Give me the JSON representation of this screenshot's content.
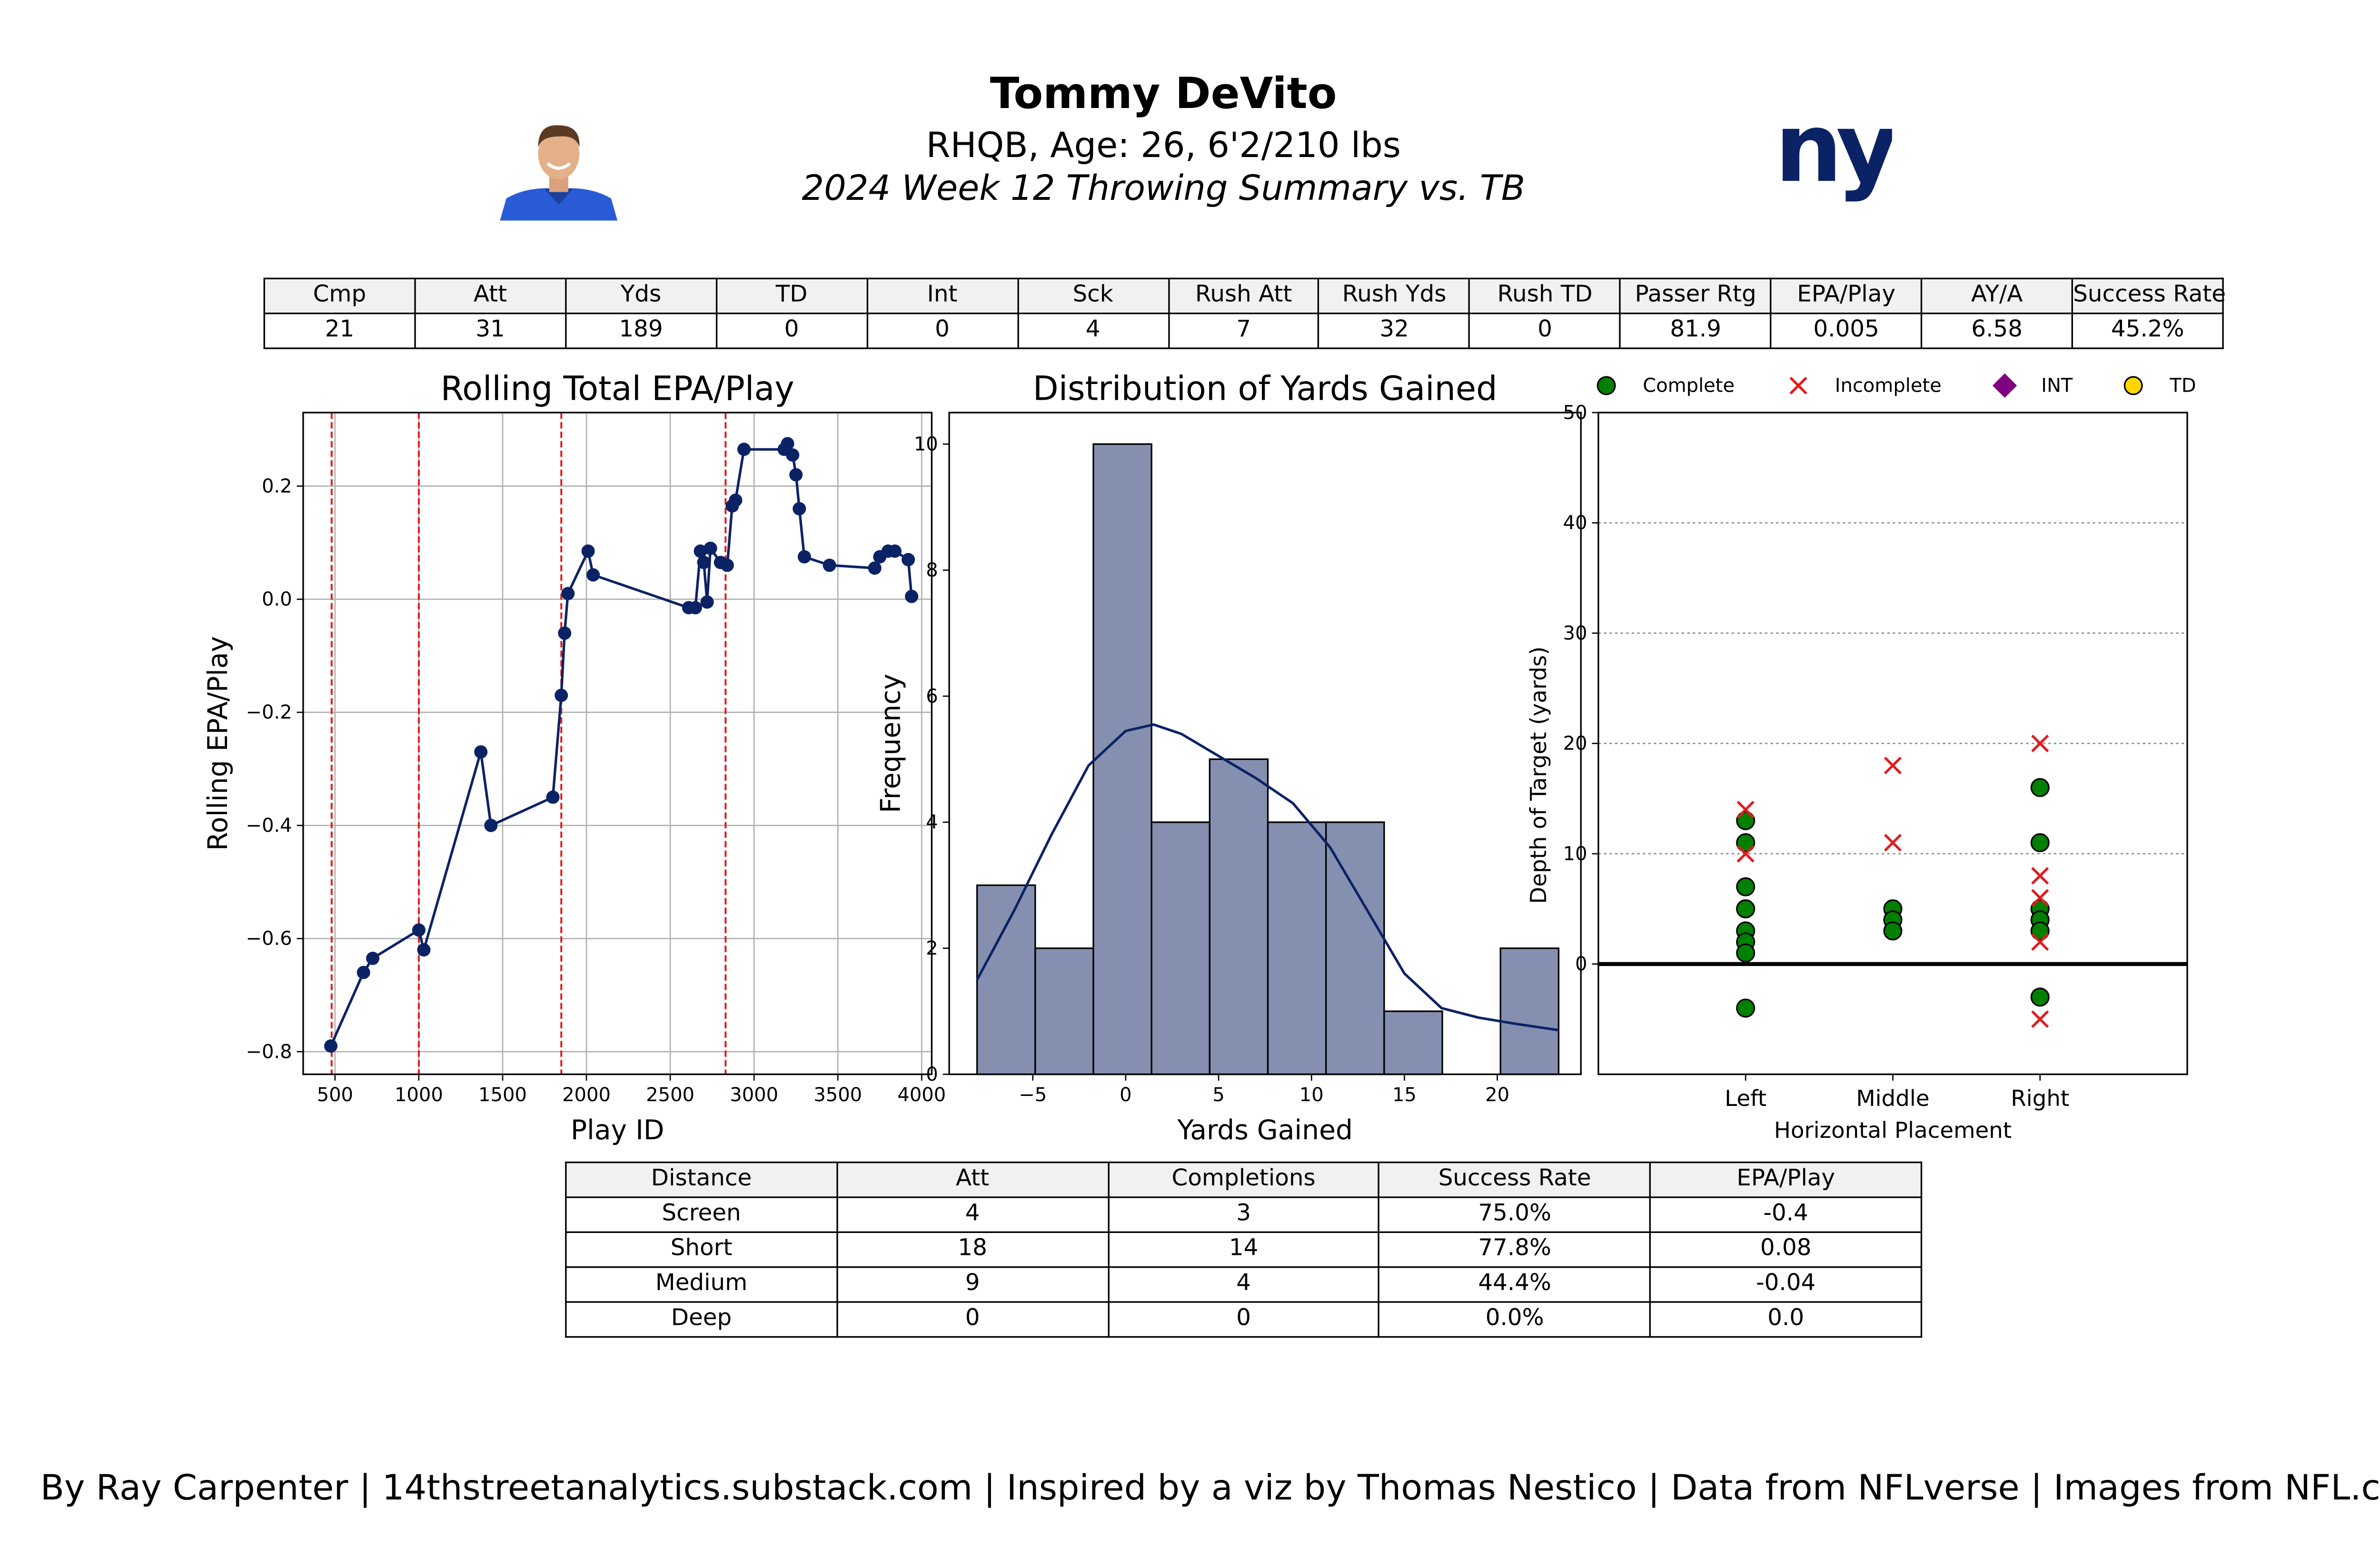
{
  "header": {
    "player_name": "Tommy DeVito",
    "player_info": "RHQB, Age: 26, 6'2/210 lbs",
    "week_summary": "2024 Week 12 Throwing Summary vs. TB",
    "team_logo_text": "ny",
    "colors": {
      "team_navy": "#0B2265",
      "headshot_jersey": "#2a5bd7"
    }
  },
  "stat_table": {
    "headers": [
      "Cmp",
      "Att",
      "Yds",
      "TD",
      "Int",
      "Sck",
      "Rush Att",
      "Rush Yds",
      "Rush TD",
      "Passer Rtg",
      "EPA/Play",
      "AY/A",
      "Success Rate"
    ],
    "values": [
      "21",
      "31",
      "189",
      "0",
      "0",
      "4",
      "7",
      "32",
      "0",
      "81.9",
      "0.005",
      "6.58",
      "45.2%"
    ]
  },
  "distance_table": {
    "headers": [
      "Distance",
      "Att",
      "Completions",
      "Success Rate",
      "EPA/Play"
    ],
    "rows": [
      [
        "Screen",
        "4",
        "3",
        "75.0%",
        "-0.4"
      ],
      [
        "Short",
        "18",
        "14",
        "77.8%",
        "0.08"
      ],
      [
        "Medium",
        "9",
        "4",
        "44.4%",
        "-0.04"
      ],
      [
        "Deep",
        "0",
        "0",
        "0.0%",
        "0.0"
      ]
    ]
  },
  "footer": "By Ray Carpenter | 14thstreetanalytics.substack.com | Inspired by a viz by Thomas Nestico | Data from NFLverse | Images from NFL.com",
  "chart_data": [
    {
      "type": "line",
      "title": "Rolling Total EPA/Play",
      "xlabel": "Play ID",
      "ylabel": "Rolling EPA/Play",
      "xlim": [
        310,
        4060
      ],
      "ylim": [
        -0.84,
        0.33
      ],
      "xticks": [
        500,
        1000,
        1500,
        2000,
        2500,
        3000,
        3500,
        4000
      ],
      "yticks": [
        -0.8,
        -0.6,
        -0.4,
        -0.2,
        0.0,
        0.2
      ],
      "ytick_labels": [
        "−0.8",
        "−0.6",
        "−0.4",
        "−0.2",
        "0.0",
        "0.2"
      ],
      "grid": true,
      "color": "#0B2265",
      "vlines": {
        "x": [
          480,
          1000,
          1850,
          2830
        ],
        "color": "#e31a1c",
        "style": "dashed"
      },
      "x": [
        475,
        670,
        725,
        1000,
        1030,
        1370,
        1430,
        1800,
        1850,
        1870,
        1890,
        2010,
        2040,
        2610,
        2650,
        2680,
        2700,
        2720,
        2740,
        2800,
        2840,
        2870,
        2890,
        2940,
        3180,
        3200,
        3230,
        3250,
        3270,
        3300,
        3450,
        3720,
        3750,
        3800,
        3840,
        3920,
        3940
      ],
      "y": [
        -0.79,
        -0.66,
        -0.635,
        -0.585,
        -0.62,
        -0.27,
        -0.4,
        -0.35,
        -0.17,
        -0.06,
        0.01,
        0.085,
        0.043,
        -0.015,
        -0.015,
        0.085,
        0.065,
        -0.005,
        0.09,
        0.065,
        0.06,
        0.165,
        0.175,
        0.265,
        0.265,
        0.275,
        0.255,
        0.22,
        0.16,
        0.075,
        0.06,
        0.055,
        0.075,
        0.085,
        0.085,
        0.07,
        0.005
      ]
    },
    {
      "type": "bar",
      "title": "Distribution of Yards Gained",
      "xlabel": "Yards Gained",
      "ylabel": "Frequency",
      "xlim": [
        -9.5,
        24.5
      ],
      "ylim": [
        0,
        10.5
      ],
      "xticks": [
        -5,
        0,
        5,
        10,
        15,
        20
      ],
      "xtick_labels": [
        "−5",
        "0",
        "5",
        "10",
        "15",
        "20"
      ],
      "yticks": [
        0,
        2,
        4,
        6,
        8,
        10
      ],
      "bin_edges": [
        -8,
        -4.87,
        -1.74,
        1.39,
        4.52,
        7.65,
        10.78,
        13.91,
        17.04,
        20.17,
        23.3
      ],
      "values": [
        3,
        2,
        10,
        4,
        5,
        4,
        4,
        1,
        0,
        2
      ],
      "bar_color": "#8590b0",
      "kde": {
        "color": "#0B2265",
        "x": [
          -8,
          -6,
          -4,
          -2,
          0,
          1.5,
          3,
          5,
          7,
          9,
          11,
          13,
          15,
          17,
          19,
          21,
          23.3
        ],
        "y": [
          1.5,
          2.6,
          3.8,
          4.9,
          5.45,
          5.55,
          5.4,
          5.05,
          4.7,
          4.3,
          3.6,
          2.6,
          1.6,
          1.05,
          0.9,
          0.8,
          0.7
        ]
      }
    },
    {
      "type": "scatter",
      "xlabel": "Horizontal Placement",
      "ylabel": "Depth of Target (yards)",
      "categories": [
        "Left",
        "Middle",
        "Right"
      ],
      "ylim": [
        -10,
        50
      ],
      "yticks": [
        0,
        10,
        20,
        30,
        40,
        50
      ],
      "grid": "horizontal dotted",
      "legend": {
        "placement": "top",
        "entries": [
          {
            "label": "Complete",
            "marker": "circle",
            "color": "#008000"
          },
          {
            "label": "Incomplete",
            "marker": "x",
            "color": "#e31a1c"
          },
          {
            "label": "INT",
            "marker": "diamond",
            "color": "#800080"
          },
          {
            "label": "TD",
            "marker": "circle",
            "color": "#ffd700"
          }
        ]
      },
      "series": [
        {
          "name": "Complete",
          "points": [
            [
              "Left",
              13
            ],
            [
              "Left",
              11
            ],
            [
              "Left",
              7
            ],
            [
              "Left",
              5
            ],
            [
              "Left",
              3
            ],
            [
              "Left",
              2
            ],
            [
              "Left",
              1
            ],
            [
              "Left",
              -4
            ],
            [
              "Middle",
              5
            ],
            [
              "Middle",
              4
            ],
            [
              "Middle",
              3
            ],
            [
              "Right",
              16
            ],
            [
              "Right",
              11
            ],
            [
              "Right",
              5
            ],
            [
              "Right",
              4
            ],
            [
              "Right",
              3
            ],
            [
              "Right",
              -3
            ]
          ]
        },
        {
          "name": "Incomplete",
          "points": [
            [
              "Left",
              14
            ],
            [
              "Left",
              10
            ],
            [
              "Middle",
              18
            ],
            [
              "Middle",
              11
            ],
            [
              "Right",
              20
            ],
            [
              "Right",
              8
            ],
            [
              "Right",
              6
            ],
            [
              "Right",
              2
            ],
            [
              "Right",
              -5
            ]
          ]
        },
        {
          "name": "INT",
          "points": []
        },
        {
          "name": "TD",
          "points": []
        }
      ]
    }
  ]
}
